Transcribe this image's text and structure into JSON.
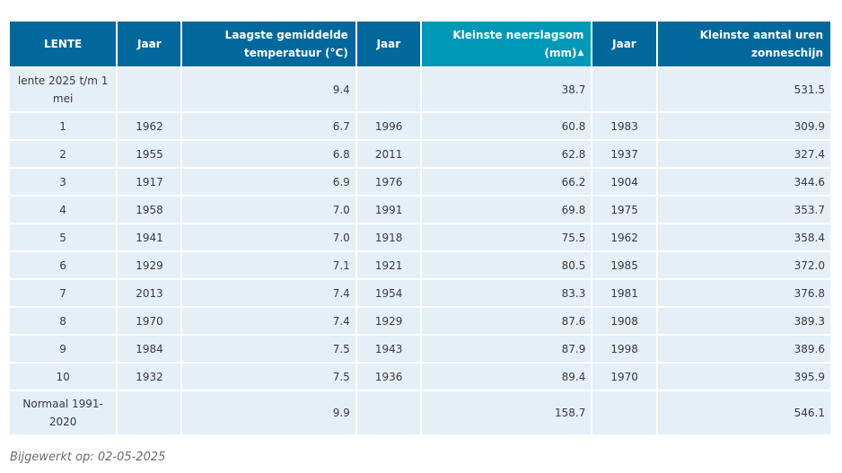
{
  "table": {
    "headers": [
      "LENTE",
      "Jaar",
      "Laagste gemiddelde temperatuur (°C)",
      "Jaar",
      "Kleinste neerslagsom (mm)",
      "Jaar",
      "Kleinste aantal uren zonneschijn"
    ],
    "current": {
      "label": "lente 2025 t/m 1 mei",
      "temp": "9.4",
      "rain": "38.7",
      "sun": "531.5"
    },
    "rows": [
      [
        "1",
        "1962",
        "6.7",
        "1996",
        "60.8",
        "1983",
        "309.9"
      ],
      [
        "2",
        "1955",
        "6.8",
        "2011",
        "62.8",
        "1937",
        "327.4"
      ],
      [
        "3",
        "1917",
        "6.9",
        "1976",
        "66.2",
        "1904",
        "344.6"
      ],
      [
        "4",
        "1958",
        "7.0",
        "1991",
        "69.8",
        "1975",
        "353.7"
      ],
      [
        "5",
        "1941",
        "7.0",
        "1918",
        "75.5",
        "1962",
        "358.4"
      ],
      [
        "6",
        "1929",
        "7.1",
        "1921",
        "80.5",
        "1985",
        "372.0"
      ],
      [
        "7",
        "2013",
        "7.4",
        "1954",
        "83.3",
        "1981",
        "376.8"
      ],
      [
        "8",
        "1970",
        "7.4",
        "1929",
        "87.6",
        "1908",
        "389.3"
      ],
      [
        "9",
        "1984",
        "7.5",
        "1943",
        "87.9",
        "1998",
        "389.6"
      ],
      [
        "10",
        "1932",
        "7.5",
        "1936",
        "89.4",
        "1970",
        "395.9"
      ]
    ],
    "normal": {
      "label": "Normaal 1991-2020",
      "temp": "9.9",
      "rain": "158.7",
      "sun": "546.1"
    }
  },
  "footer": "Bijgewerkt op: 02-05-2025",
  "colors": {
    "header": "#01689b",
    "header_sorted": "#0098b7",
    "cell": "#e4eff8"
  }
}
